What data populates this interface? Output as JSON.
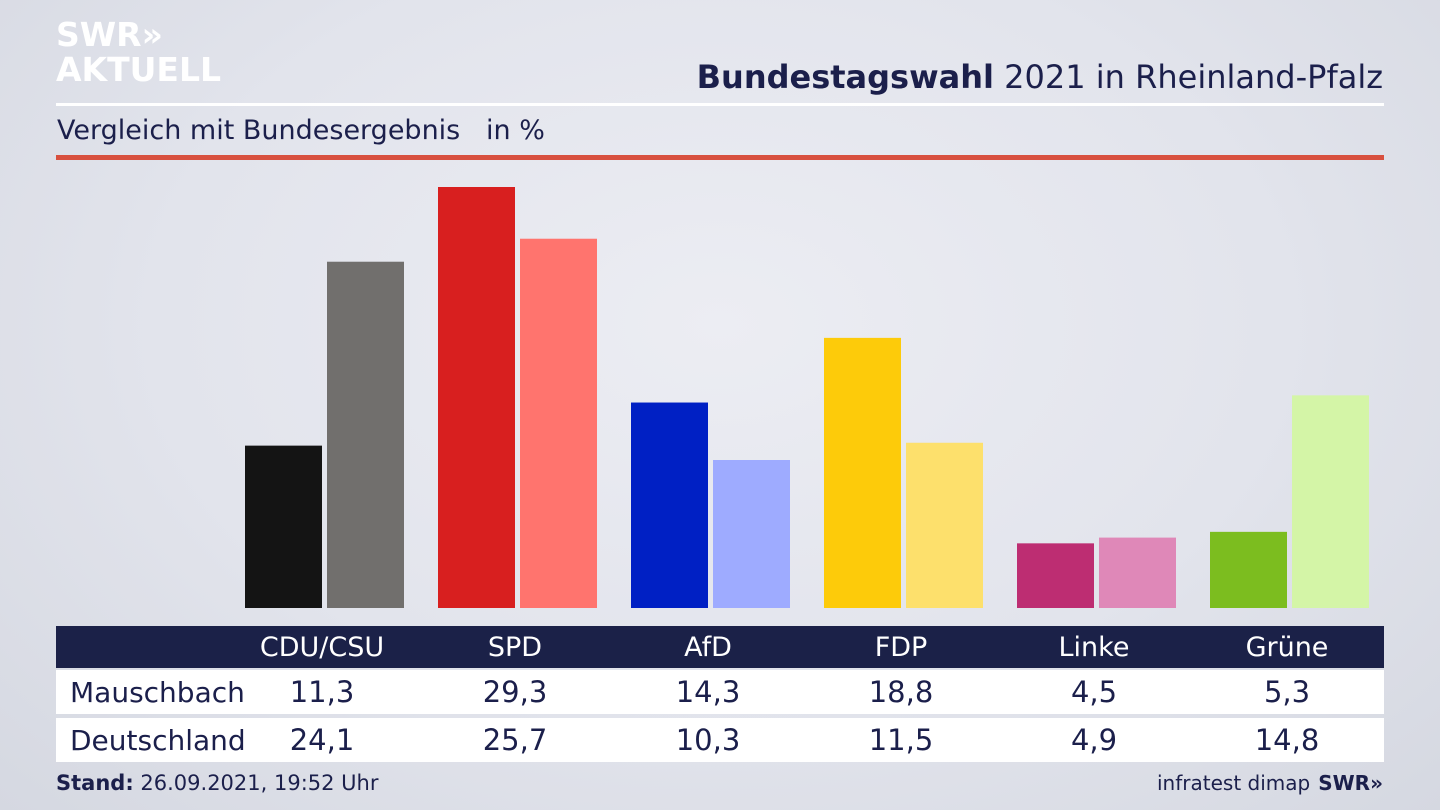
{
  "logo": {
    "line1": "SWR»",
    "line2": "AKTUELL"
  },
  "header": {
    "title_bold": "Bundestagswahl",
    "title_rest": " 2021 in Rheinland-Pfalz"
  },
  "subtitle": "Vergleich mit Bundesergebnis   in %",
  "colors": {
    "local": [
      "#141414",
      "#d81f1f",
      "#0020c4",
      "#fdcb0a",
      "#bd2d72",
      "#7cbd1f"
    ],
    "national": [
      "#716f6d",
      "#ff746e",
      "#9eabff",
      "#fde06c",
      "#df88b8",
      "#d4f5a7"
    ]
  },
  "chart_data": {
    "type": "bar",
    "categories": [
      "CDU/CSU",
      "SPD",
      "AfD",
      "FDP",
      "Linke",
      "Grüne"
    ],
    "series": [
      {
        "name": "Mauschbach",
        "values": [
          11.3,
          29.3,
          14.3,
          18.8,
          4.5,
          5.3
        ]
      },
      {
        "name": "Deutschland",
        "values": [
          24.1,
          25.7,
          10.3,
          11.5,
          4.9,
          14.8
        ]
      }
    ],
    "ylim": [
      0,
      29.3
    ],
    "grid": false
  },
  "table": {
    "headers": [
      "CDU/CSU",
      "SPD",
      "AfD",
      "FDP",
      "Linke",
      "Grüne"
    ],
    "rows": [
      {
        "label": "Mauschbach",
        "values": [
          "11,3",
          "29,3",
          "14,3",
          "18,8",
          "4,5",
          "5,3"
        ]
      },
      {
        "label": "Deutschland",
        "values": [
          "24,1",
          "25,7",
          "10,3",
          "11,5",
          "4,9",
          "14,8"
        ]
      }
    ]
  },
  "footer": {
    "stand_label": "Stand:",
    "stand_value": " 26.09.2021, 19:52 Uhr",
    "source": "infratest dimap",
    "brand": "SWR»"
  }
}
